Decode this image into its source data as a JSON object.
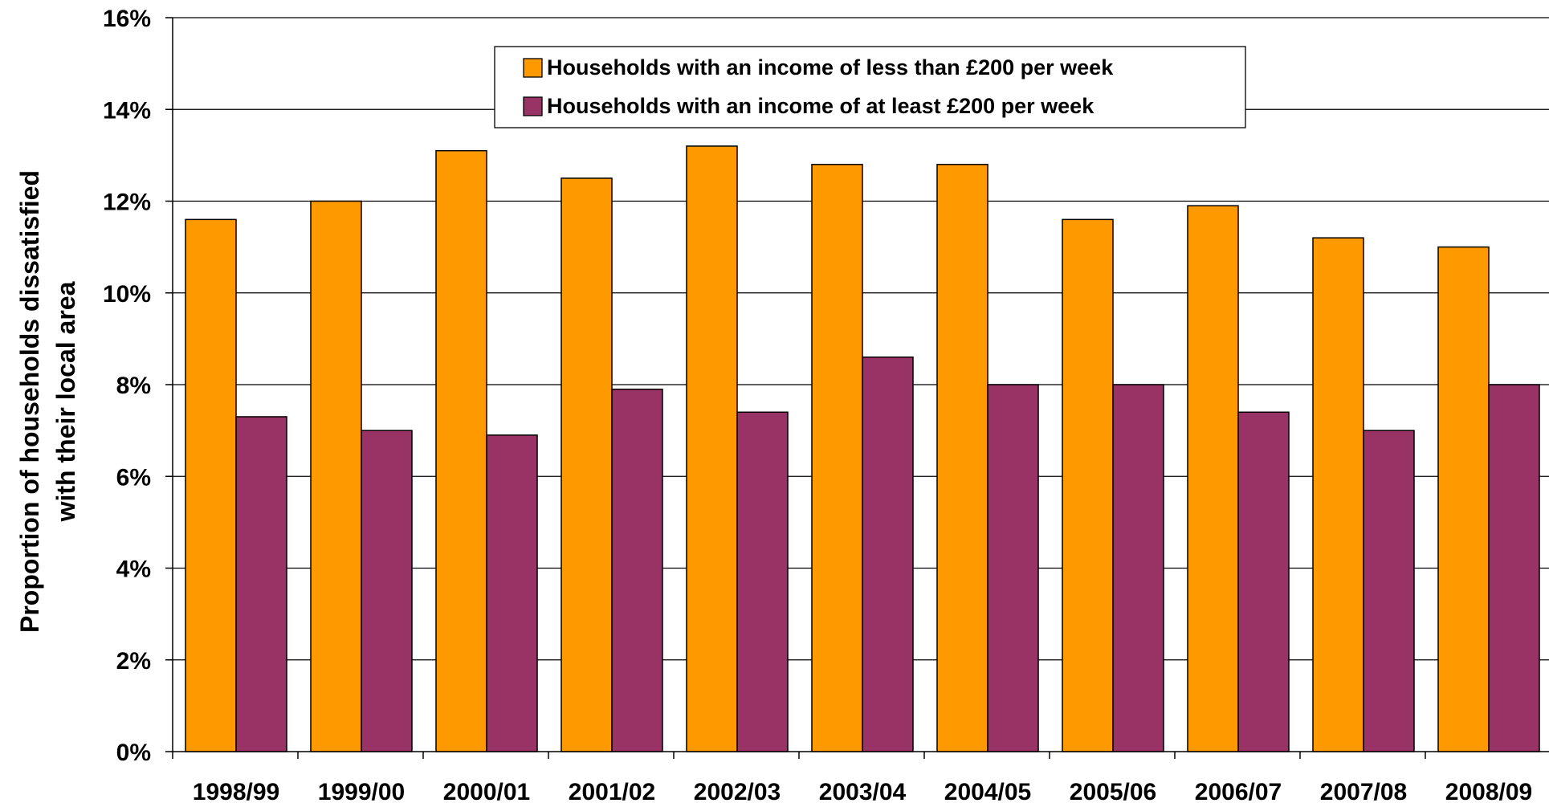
{
  "chart_data": {
    "type": "bar",
    "title": "",
    "xlabel": "",
    "ylabel_lines": [
      "Proportion of households dissatisfied",
      "with their local area"
    ],
    "ylim": [
      0,
      16
    ],
    "ytick_values": [
      0,
      2,
      4,
      6,
      8,
      10,
      12,
      14,
      16
    ],
    "ytick_labels": [
      "0%",
      "2%",
      "4%",
      "6%",
      "8%",
      "10%",
      "12%",
      "14%",
      "16%"
    ],
    "grid": true,
    "legend_position": "top-center",
    "categories": [
      "1998/99",
      "1999/00",
      "2000/01",
      "2001/02",
      "2002/03",
      "2003/04",
      "2004/05",
      "2005/06",
      "2006/07",
      "2007/08",
      "2008/09"
    ],
    "series": [
      {
        "name": "Households with an income of less than £200 per week",
        "color": "#FF9900",
        "values": [
          11.6,
          12.0,
          13.1,
          12.5,
          13.2,
          12.8,
          12.8,
          11.6,
          11.9,
          11.2,
          11.0
        ]
      },
      {
        "name": "Households with an income of at least £200 per week",
        "color": "#993366",
        "values": [
          7.3,
          7.0,
          6.9,
          7.9,
          7.4,
          8.6,
          8.0,
          8.0,
          7.4,
          7.0,
          8.0
        ]
      }
    ]
  }
}
